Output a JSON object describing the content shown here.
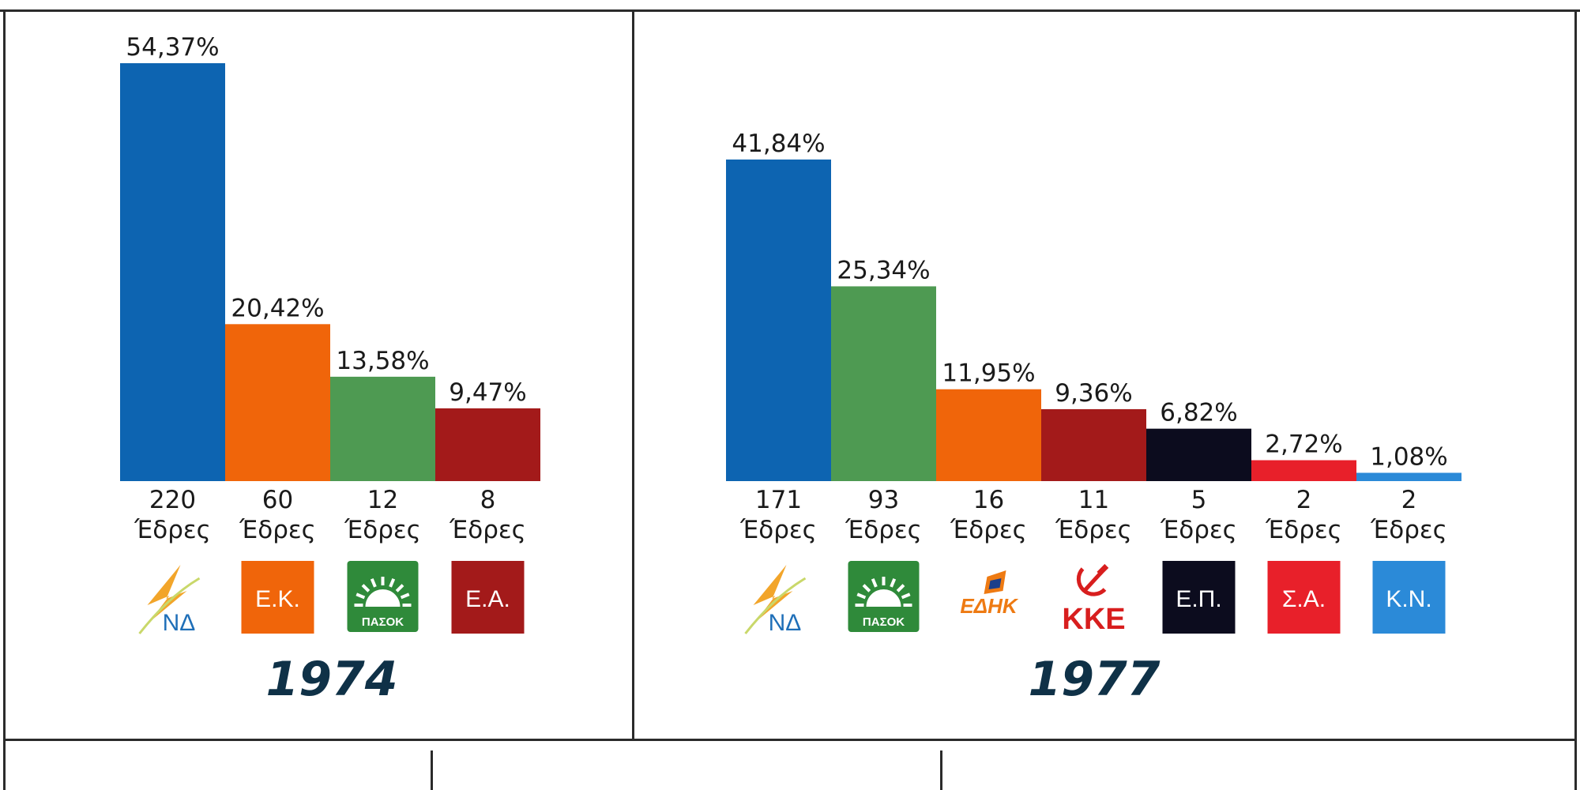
{
  "chart_data": [
    {
      "type": "bar",
      "title": "1974",
      "categories": [
        "ΝΔ",
        "Ε.Κ.",
        "ΠΑΣΟΚ",
        "Ε.Α."
      ],
      "values": [
        54.37,
        20.42,
        13.58,
        9.47
      ],
      "value_labels": [
        "54,37%",
        "20,42%",
        "13,58%",
        "9,47%"
      ],
      "seats": [
        "220",
        "60",
        "12",
        "8"
      ],
      "seats_unit": "Έδρες",
      "colors": [
        "#0d64b1",
        "#f0650a",
        "#4e9a52",
        "#a31a1a"
      ],
      "ylim": [
        0,
        54.37
      ]
    },
    {
      "type": "bar",
      "title": "1977",
      "categories": [
        "ΝΔ",
        "ΠΑΣΟΚ",
        "ΕΔΗΚ",
        "ΚΚΕ",
        "Ε.Π.",
        "Σ.Α.",
        "Κ.Ν."
      ],
      "values": [
        41.84,
        25.34,
        11.95,
        9.36,
        6.82,
        2.72,
        1.08
      ],
      "value_labels": [
        "41,84%",
        "25,34%",
        "11,95%",
        "9,36%",
        "6,82%",
        "2,72%",
        "1,08%"
      ],
      "seats": [
        "171",
        "93",
        "16",
        "11",
        "5",
        "2",
        "2"
      ],
      "seats_unit": "Έδρες",
      "colors": [
        "#0d64b1",
        "#4e9a52",
        "#f0650a",
        "#a31a1a",
        "#0c0c1e",
        "#e8202a",
        "#2b8ad8"
      ],
      "ylim": [
        0,
        54.37
      ]
    }
  ],
  "logos": {
    "nd": {
      "icon": "nd-torch-icon",
      "text": "ΝΔ",
      "color": "#1f6fb8",
      "flame": "#f2a52a"
    },
    "pasok": {
      "icon": "pasok-sun-icon",
      "text": "ΠΑΣΟΚ",
      "color": "#2f8a3a"
    },
    "edhk": {
      "icon": "edhk-logo-icon",
      "text": "ΕΔΗΚ",
      "color": "#ee7a12"
    },
    "kke": {
      "icon": "hammer-sickle-icon",
      "text": "ΚΚΕ",
      "color": "#d81e1e"
    }
  }
}
